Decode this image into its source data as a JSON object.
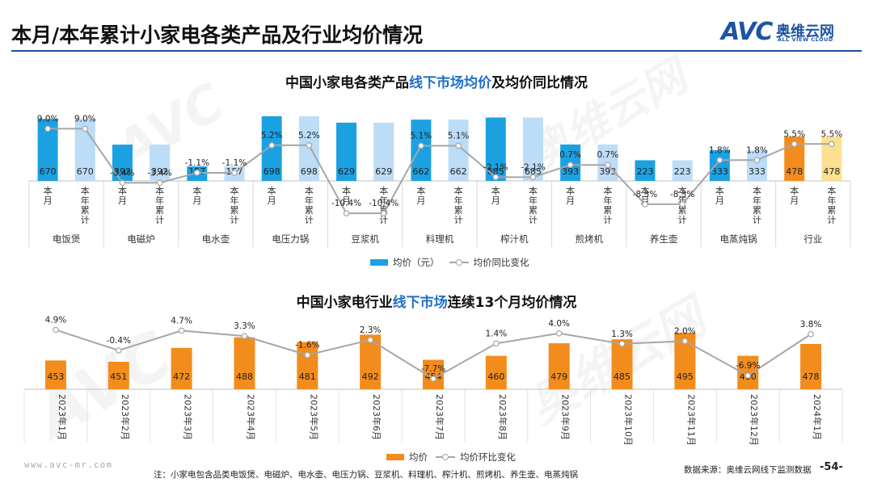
{
  "header": {
    "title": "本月/本年累计小家电各类产品及行业均价情况",
    "logo_text": "AVC",
    "logo_cn": "奥维云网",
    "logo_en": "ALL VIEW CLOUD"
  },
  "colors": {
    "monthly_bar": "#1ba1e2",
    "cumulative_bar": "#bcdcf7",
    "industry_monthly": "#f28c1c",
    "industry_cumulative": "#fbe08f",
    "trend_bar": "#f28c1c",
    "line": "#a6a6a6",
    "accent": "#1b4f9c"
  },
  "chart_data": [
    {
      "type": "bar",
      "title_pre": "中国小家电各类产品",
      "title_hl": "线下市场均价",
      "title_post": "及均价同比情况",
      "groups": [
        "电饭煲",
        "电磁炉",
        "电水壶",
        "电压力锅",
        "豆浆机",
        "料理机",
        "榨汁机",
        "煎烤机",
        "养生壶",
        "电蒸炖锅",
        "行业"
      ],
      "sub_labels": [
        "本月",
        "本年累计"
      ],
      "series": [
        {
          "name": "均价（元）",
          "values": [
            670,
            670,
            392,
            392,
            157,
            157,
            698,
            698,
            629,
            629,
            662,
            662,
            685,
            685,
            393,
            393,
            223,
            223,
            333,
            333,
            478,
            478
          ]
        },
        {
          "name": "均价同比变化",
          "values": [
            "9.0%",
            "9.0%",
            "-3.4%",
            "-3.4%",
            "-1.1%",
            "-1.1%",
            "5.2%",
            "5.2%",
            "-10.4%",
            "-10.4%",
            "5.1%",
            "5.1%",
            "-2.1%",
            "-2.1%",
            "0.7%",
            "0.7%",
            "-8.3%",
            "-8.3%",
            "1.8%",
            "1.8%",
            "5.5%",
            "5.5%"
          ]
        }
      ],
      "line_values": [
        9.0,
        9.0,
        -3.4,
        -3.4,
        -1.1,
        -1.1,
        5.2,
        5.2,
        -10.4,
        -10.4,
        5.1,
        5.1,
        -2.1,
        -2.1,
        0.7,
        0.7,
        -8.3,
        -8.3,
        1.8,
        1.8,
        5.5,
        5.5
      ],
      "legend": [
        "均价（元）",
        "均价同比变化"
      ]
    },
    {
      "type": "bar",
      "title_pre": "中国小家电行业",
      "title_hl": "线下市场",
      "title_post": "连续13个月均价情况",
      "categories": [
        "2023年1月",
        "2023年2月",
        "2023年3月",
        "2023年4月",
        "2023年5月",
        "2023年6月",
        "2023年7月",
        "2023年8月",
        "2023年9月",
        "2023年10月",
        "2023年11月",
        "2023年12月",
        "2024年1月"
      ],
      "series": [
        {
          "name": "均价",
          "values": [
            453,
            451,
            472,
            488,
            481,
            492,
            454,
            460,
            479,
            485,
            495,
            460,
            478
          ]
        },
        {
          "name": "均价环比变化",
          "values": [
            "4.9%",
            "-0.4%",
            "4.7%",
            "3.3%",
            "-1.6%",
            "2.3%",
            "-7.7%",
            "1.4%",
            "4.0%",
            "1.3%",
            "2.0%",
            "-6.9%",
            "3.8%"
          ]
        }
      ],
      "line_values": [
        4.9,
        -0.4,
        4.7,
        3.3,
        -1.6,
        2.3,
        -7.7,
        1.4,
        4.0,
        1.3,
        2.0,
        -6.9,
        3.8
      ],
      "legend": [
        "均价",
        "均价环比变化"
      ]
    }
  ],
  "footer": {
    "note": "注：小家电包含品类电饭煲、电磁炉、电水壶、电压力锅、豆浆机、料理机、榨汁机、煎烤机、养生壶、电蒸炖锅",
    "source": "数据来源：奥维云网线下监测数据",
    "page": "-54-",
    "website": "www.avc-mr.com"
  }
}
